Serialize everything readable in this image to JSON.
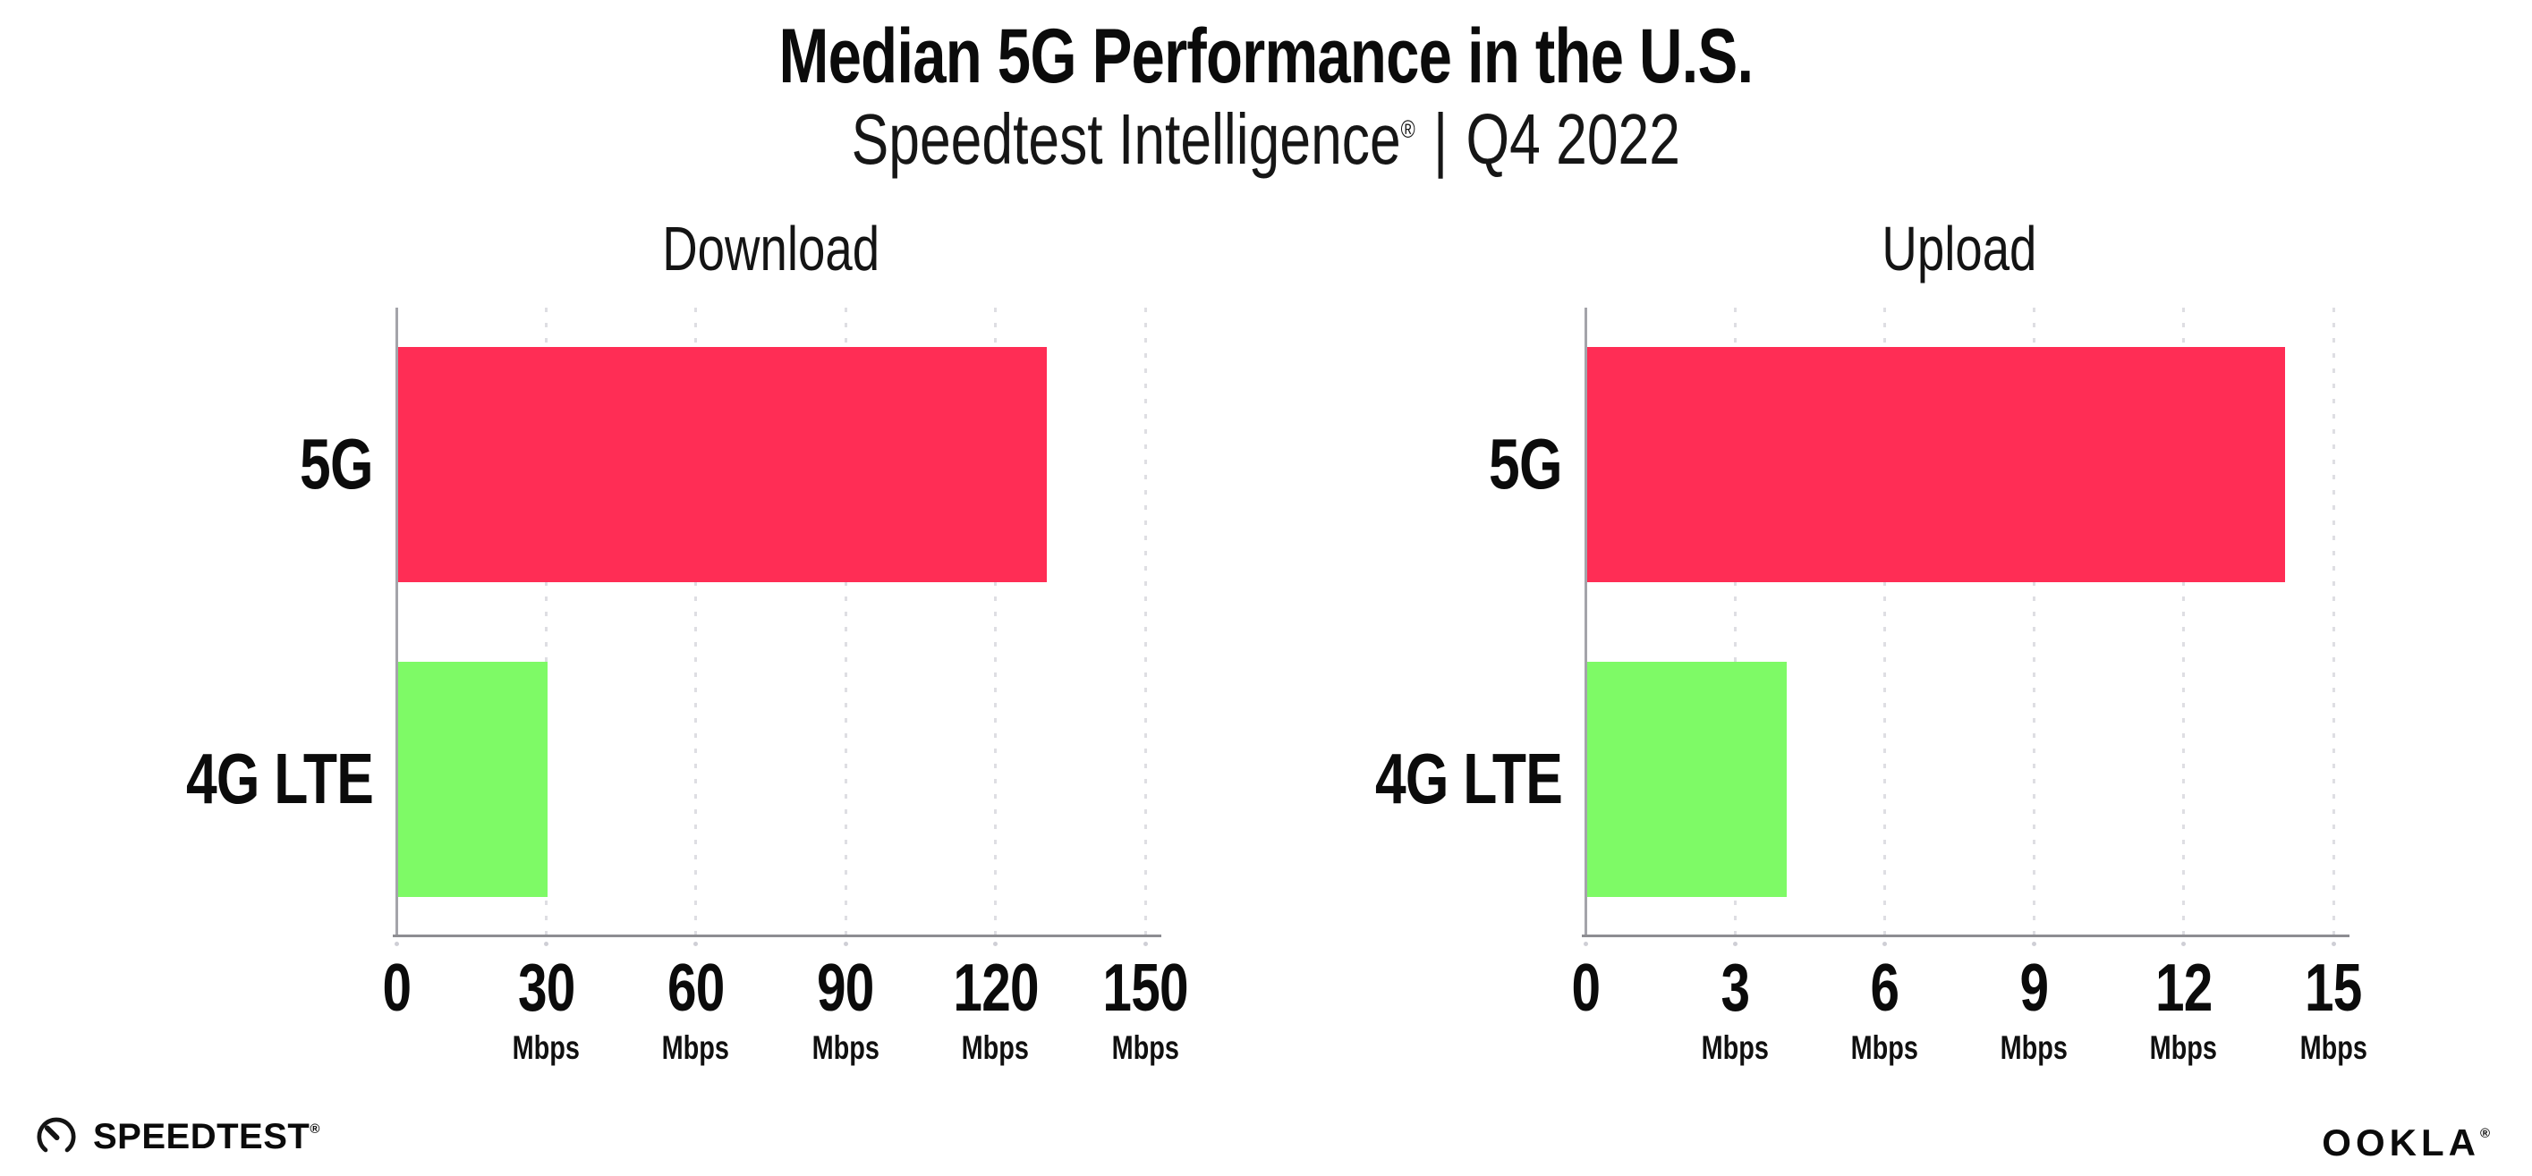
{
  "page": {
    "background": "#ffffff"
  },
  "header": {
    "title": "Median 5G Performance in the U.S.",
    "subtitle": {
      "brand": "Speedtest Intelligence",
      "registered": "®",
      "separator": "|",
      "period": "Q4 2022"
    }
  },
  "chart_data": [
    {
      "type": "bar",
      "orientation": "horizontal",
      "title": "Download",
      "categories": [
        "5G",
        "4G LTE"
      ],
      "values": [
        130,
        30
      ],
      "unit": "Mbps",
      "xlabel": "",
      "ylabel": "",
      "xlim": [
        0,
        150
      ],
      "xticks": [
        0,
        30,
        60,
        90,
        120,
        150
      ],
      "bar_colors": [
        "#FF2D55",
        "#7EFA66"
      ],
      "grid": "vertical-dotted",
      "legend_position": "none"
    },
    {
      "type": "bar",
      "orientation": "horizontal",
      "title": "Upload",
      "categories": [
        "5G",
        "4G LTE"
      ],
      "values": [
        14,
        4
      ],
      "unit": "Mbps",
      "xlabel": "",
      "ylabel": "",
      "xlim": [
        0,
        15
      ],
      "xticks": [
        0,
        3,
        6,
        9,
        12,
        15
      ],
      "bar_colors": [
        "#FF2D55",
        "#7EFA66"
      ],
      "grid": "vertical-dotted",
      "legend_position": "none"
    }
  ],
  "footer": {
    "speedtest": {
      "icon": "speedtest-gauge-icon",
      "label": "SPEEDTEST",
      "mark": "®"
    },
    "ookla": {
      "label": "OOKLA",
      "mark": "®"
    }
  },
  "colors": {
    "bar_5g": "#FF2D55",
    "bar_4g_lte": "#7EFA66",
    "axis": "#8d8d92",
    "gridline": "#dedee3",
    "text": "#0b0b0b"
  }
}
